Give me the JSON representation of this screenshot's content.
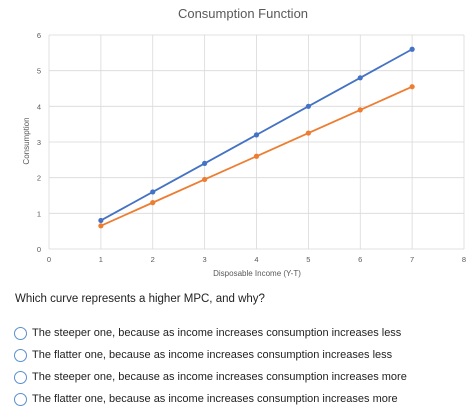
{
  "chart_data": {
    "type": "line",
    "title": "Consumption Function",
    "xlabel": "Disposable Income (Y-T)",
    "ylabel": "Consumption",
    "xlim": [
      0,
      8
    ],
    "ylim": [
      0,
      6
    ],
    "xticks": [
      "0",
      "1",
      "2",
      "3",
      "4",
      "5",
      "6",
      "7",
      "8"
    ],
    "yticks": [
      "0",
      "1",
      "2",
      "3",
      "4",
      "5",
      "6"
    ],
    "grid": true,
    "legend": "none",
    "series": [
      {
        "color": "#4472c4",
        "x": [
          1,
          2,
          3,
          4,
          5,
          6,
          7
        ],
        "y": [
          0.8,
          1.6,
          2.4,
          3.2,
          4.0,
          4.8,
          5.6
        ]
      },
      {
        "color": "#ed7d31",
        "x": [
          1,
          2,
          3,
          4,
          5,
          6,
          7
        ],
        "y": [
          0.65,
          1.3,
          1.95,
          2.6,
          3.25,
          3.9,
          4.55
        ]
      }
    ]
  },
  "question": {
    "text": "Which curve represents a higher MPC, and why?",
    "options": [
      "The steeper one, because as income increases consumption increases less",
      "The flatter one, because as income increases consumption increases less",
      "The steeper one, because as income increases consumption increases more",
      "The flatter one, because as income increases consumption increases more"
    ]
  }
}
